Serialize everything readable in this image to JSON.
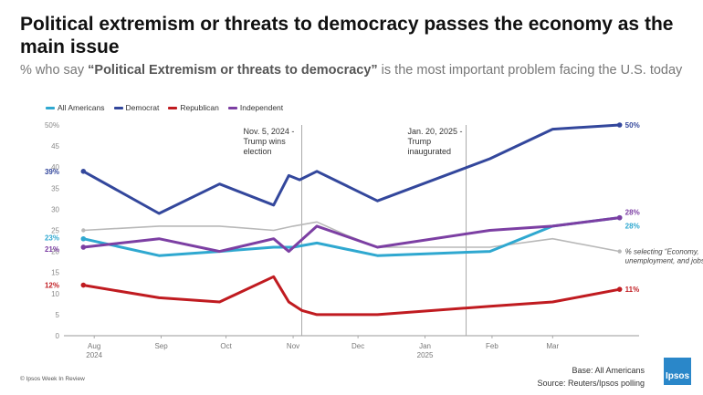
{
  "title": "Political extremism or threats to democracy passes the economy as the main issue",
  "subtitle_prefix": "% who say ",
  "subtitle_emphasis": "“Political Extremism or threats to democracy”",
  "subtitle_suffix": " is the most important problem facing the U.S. today",
  "footer_left": "© Ipsos Week In Review",
  "footer_base": "Base: All Americans",
  "footer_source": "Source: Reuters/Ipsos polling",
  "logo_text": "Ipsos",
  "colors": {
    "all_americans": "#2fa8d0",
    "democrat": "#33479c",
    "republican": "#c01b20",
    "independent": "#7c3fa3",
    "economy": "#b8b8b8",
    "axis": "#999999"
  },
  "chart_data": {
    "type": "line",
    "ylim": [
      0,
      50
    ],
    "yticks": [
      0,
      5,
      10,
      15,
      20,
      25,
      30,
      35,
      40,
      45,
      50
    ],
    "ytick_labels": [
      "0",
      "5",
      "10",
      "15",
      "20",
      "25",
      "30",
      "35",
      "40",
      "45",
      "50%"
    ],
    "xlim": [
      "2024-07-18",
      "2025-04-10"
    ],
    "xticks": [
      {
        "date": "2024-08-01",
        "label": "Aug",
        "sub": "2024"
      },
      {
        "date": "2024-09-01",
        "label": "Sep",
        "sub": ""
      },
      {
        "date": "2024-10-01",
        "label": "Oct",
        "sub": ""
      },
      {
        "date": "2024-11-01",
        "label": "Nov",
        "sub": ""
      },
      {
        "date": "2024-12-01",
        "label": "Dec",
        "sub": ""
      },
      {
        "date": "2025-01-01",
        "label": "Jan",
        "sub": "2025"
      },
      {
        "date": "2025-02-01",
        "label": "Feb",
        "sub": ""
      },
      {
        "date": "2025-03-01",
        "label": "Mar",
        "sub": ""
      }
    ],
    "annotations": [
      {
        "date": "2024-11-05",
        "lines": [
          "Nov. 5, 2024 -",
          "Trump wins",
          "election"
        ]
      },
      {
        "date": "2025-01-20",
        "lines": [
          "Jan. 20, 2025 -",
          "Trump",
          "inaugurated"
        ]
      }
    ],
    "series": [
      {
        "key": "economy",
        "name": "",
        "dates": [
          "2024-07-27",
          "2024-08-31",
          "2024-09-28",
          "2024-10-23",
          "2024-11-01",
          "2024-11-12",
          "2024-11-25",
          "2024-12-10",
          "2025-01-31",
          "2025-03-01",
          "2025-04-01"
        ],
        "values": [
          25,
          26,
          26,
          25,
          26,
          27,
          24,
          21,
          21,
          23,
          20
        ],
        "label": "% selecting “Economy, unemployment, and jobs”"
      },
      {
        "key": "democrat",
        "name": "Democrat",
        "dates": [
          "2024-07-27",
          "2024-08-31",
          "2024-09-28",
          "2024-10-23",
          "2024-10-30",
          "2024-11-04",
          "2024-11-12",
          "2024-12-10",
          "2025-01-31",
          "2025-03-01",
          "2025-04-01"
        ],
        "values": [
          39,
          29,
          36,
          31,
          38,
          37,
          39,
          32,
          42,
          49,
          50
        ],
        "start_label": "39%",
        "end_label": "50%"
      },
      {
        "key": "all_americans",
        "name": "All Americans",
        "dates": [
          "2024-07-27",
          "2024-08-31",
          "2024-09-28",
          "2024-10-23",
          "2024-11-01",
          "2024-11-12",
          "2024-12-10",
          "2025-01-31",
          "2025-03-01",
          "2025-04-01"
        ],
        "values": [
          23,
          19,
          20,
          21,
          21,
          22,
          19,
          20,
          26,
          28
        ],
        "start_label": "23%",
        "end_label": "28%"
      },
      {
        "key": "independent",
        "name": "Independent",
        "dates": [
          "2024-07-27",
          "2024-08-31",
          "2024-09-28",
          "2024-10-23",
          "2024-10-30",
          "2024-11-12",
          "2024-12-10",
          "2025-01-31",
          "2025-03-01",
          "2025-04-01"
        ],
        "values": [
          21,
          23,
          20,
          23,
          20,
          26,
          21,
          25,
          26,
          28
        ],
        "start_label": "21%",
        "end_label": "28%"
      },
      {
        "key": "republican",
        "name": "Republican",
        "dates": [
          "2024-07-27",
          "2024-08-31",
          "2024-09-28",
          "2024-10-23",
          "2024-10-30",
          "2024-11-05",
          "2024-11-12",
          "2024-12-10",
          "2025-01-31",
          "2025-03-01",
          "2025-04-01"
        ],
        "values": [
          12,
          9,
          8,
          14,
          8,
          6,
          5,
          5,
          7,
          8,
          11
        ],
        "start_label": "12%",
        "end_label": "11%"
      }
    ],
    "legend_order": [
      "all_americans",
      "democrat",
      "republican",
      "independent"
    ],
    "legend_position": "top-left"
  }
}
